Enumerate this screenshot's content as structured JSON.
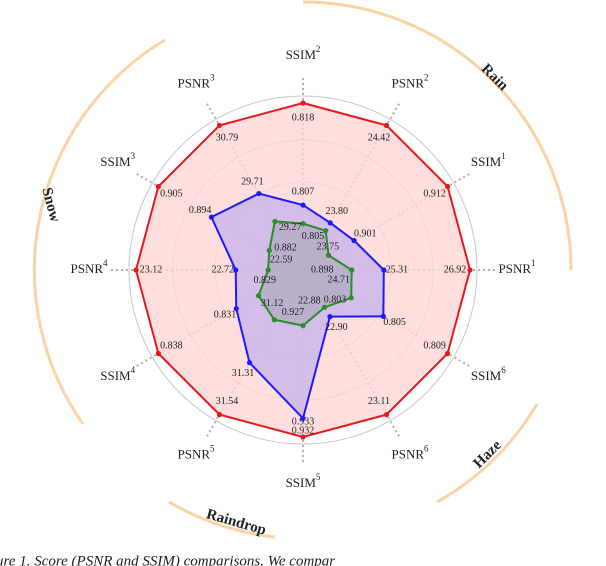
{
  "chart_data": {
    "type": "radar",
    "axes": [
      {
        "name": "SSIM",
        "sup": "2",
        "range": [
          0.8,
          0.818
        ]
      },
      {
        "name": "PSNR",
        "sup": "2",
        "range": [
          23.5,
          24.42
        ]
      },
      {
        "name": "SSIM",
        "sup": "1",
        "range": [
          0.895,
          0.912
        ]
      },
      {
        "name": "PSNR",
        "sup": "1",
        "range": [
          23.8,
          26.92
        ]
      },
      {
        "name": "SSIM",
        "sup": "6",
        "range": [
          0.8,
          0.809
        ]
      },
      {
        "name": "PSNR",
        "sup": "6",
        "range": [
          22.8,
          23.11
        ]
      },
      {
        "name": "SSIM",
        "sup": "5",
        "range": [
          0.924,
          0.933
        ]
      },
      {
        "name": "PSNR",
        "sup": "5",
        "range": [
          30.9,
          31.54
        ]
      },
      {
        "name": "SSIM",
        "sup": "4",
        "range": [
          0.825,
          0.838
        ]
      },
      {
        "name": "PSNR",
        "sup": "4",
        "range": [
          22.45,
          23.12
        ]
      },
      {
        "name": "SSIM",
        "sup": "3",
        "range": [
          0.875,
          0.905
        ]
      },
      {
        "name": "PSNR",
        "sup": "3",
        "range": [
          28.5,
          30.79
        ]
      }
    ],
    "series": [
      {
        "color": "#e8171e",
        "fill": "#ffd6d6",
        "values": [
          0.818,
          24.42,
          0.912,
          26.92,
          0.809,
          23.11,
          0.933,
          31.54,
          0.838,
          23.12,
          0.905,
          30.79
        ],
        "value_labels": [
          "0.818",
          "24.42",
          "0.912",
          "26.92",
          "0.809",
          "23.11",
          "0.933",
          "31.54",
          "0.838",
          "23.12",
          "0.905",
          "30.79"
        ]
      },
      {
        "color": "#1a1aff",
        "fill": "#c9b4ea",
        "values": [
          0.807,
          23.8,
          0.901,
          25.31,
          0.805,
          22.9,
          0.932,
          31.31,
          0.831,
          22.72,
          0.894,
          29.71
        ],
        "value_labels": [
          "0.807",
          "23.80",
          "0.901",
          "25.31",
          "0.805",
          "22.90",
          "0.932",
          "31.31",
          "0.831",
          "22.72",
          "0.894",
          "29.71"
        ]
      },
      {
        "color": "#2a8c2a",
        "fill": "#b4acc4",
        "values": [
          0.805,
          23.75,
          0.898,
          24.71,
          0.803,
          22.88,
          0.927,
          31.12,
          0.829,
          22.59,
          0.882,
          29.27
        ],
        "value_labels": [
          "0.805",
          "23.75",
          "0.898",
          "24.71",
          "0.803",
          "22.88",
          "0.927",
          "31.12",
          "0.829",
          "22.59",
          "0.882",
          "29.27"
        ]
      }
    ],
    "groups": [
      "Rain",
      "Haze",
      "Raindrop",
      "Snow"
    ],
    "caption": "ure 1.  Score (PSNR and SSIM) comparisons.  We compar"
  }
}
